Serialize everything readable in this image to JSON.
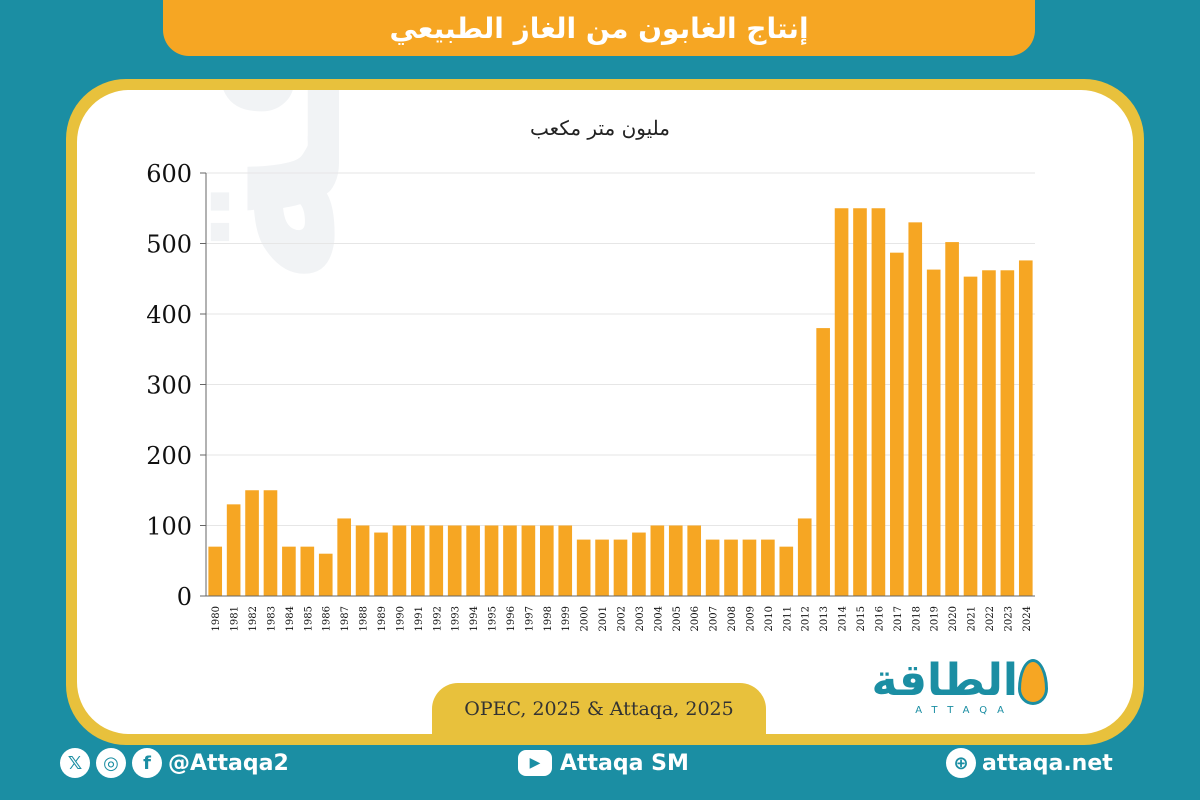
{
  "header": {
    "title": "إنتاج الغابون من الغاز الطبيعي"
  },
  "chart_data": {
    "type": "bar",
    "title": "إنتاج الغابون من الغاز الطبيعي",
    "ylabel": "مليون متر مكعب",
    "xlabel": "",
    "ylim": [
      0,
      600
    ],
    "yticks": [
      0,
      100,
      200,
      300,
      400,
      500,
      600
    ],
    "grid": true,
    "categories": [
      "1980",
      "1981",
      "1982",
      "1983",
      "1984",
      "1985",
      "1986",
      "1987",
      "1988",
      "1989",
      "1990",
      "1991",
      "1992",
      "1993",
      "1994",
      "1995",
      "1996",
      "1997",
      "1998",
      "1999",
      "2000",
      "2001",
      "2002",
      "2003",
      "2004",
      "2005",
      "2006",
      "2007",
      "2008",
      "2009",
      "2010",
      "2011",
      "2012",
      "2013",
      "2014",
      "2015",
      "2016",
      "2017",
      "2018",
      "2019",
      "2020",
      "2021",
      "2022",
      "2023",
      "2024"
    ],
    "values": [
      70,
      130,
      150,
      150,
      70,
      70,
      60,
      110,
      100,
      90,
      100,
      100,
      100,
      100,
      100,
      100,
      100,
      100,
      100,
      100,
      80,
      80,
      80,
      90,
      100,
      100,
      100,
      80,
      80,
      80,
      80,
      70,
      110,
      380,
      550,
      550,
      550,
      487,
      530,
      463,
      502,
      453,
      462,
      462,
      476
    ],
    "bar_color": "#f6a623"
  },
  "source": {
    "text": "OPEC, 2025 & Attaqa, 2025"
  },
  "logo": {
    "text": "الطاقة",
    "sub": "ATTAQA"
  },
  "watermark": {
    "text": "الطاقة"
  },
  "footer": {
    "handle": "@Attaqa2",
    "youtube": "Attaqa SM",
    "website": "attaqa.net",
    "icons": [
      "x-icon",
      "instagram-icon",
      "facebook-icon",
      "youtube-icon",
      "globe-icon"
    ]
  },
  "colors": {
    "background": "#1b8ea3",
    "accent": "#f6a623",
    "frame": "#e8c13c"
  }
}
